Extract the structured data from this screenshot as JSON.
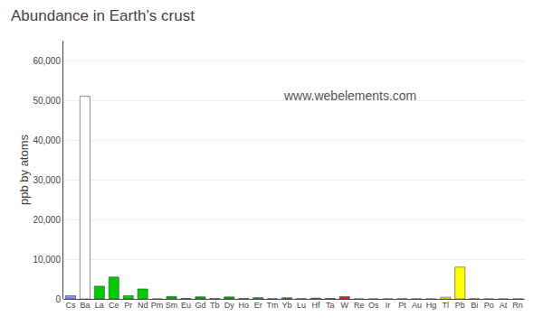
{
  "chart_data": {
    "type": "bar",
    "title": "Abundance in Earth’s crust",
    "ylabel": "ppb by atoms",
    "categories": [
      "Cs",
      "Ba",
      "La",
      "Ce",
      "Pr",
      "Nd",
      "Pm",
      "Sm",
      "Eu",
      "Gd",
      "Tb",
      "Dy",
      "Ho",
      "Er",
      "Tm",
      "Yb",
      "Lu",
      "Hf",
      "Ta",
      "W",
      "Re",
      "Os",
      "Ir",
      "Pt",
      "Au",
      "Hg",
      "Tl",
      "Pb",
      "Bi",
      "Po",
      "At",
      "Rn"
    ],
    "values": [
      800,
      51000,
      3200,
      5500,
      800,
      2500,
      0,
      600,
      120,
      520,
      85,
      500,
      100,
      300,
      45,
      280,
      45,
      190,
      110,
      550,
      2.6,
      1.5,
      2,
      37,
      15,
      8,
      420,
      8000,
      48,
      0.002,
      0.0001,
      0.0001
    ],
    "colors": [
      "#8888ff",
      "#ffffff",
      "#00cc00",
      "#00cc00",
      "#00cc00",
      "#00cc00",
      "#008800",
      "#00aa00",
      "#00aa00",
      "#00aa00",
      "#00aa00",
      "#00aa00",
      "#00aa00",
      "#00aa00",
      "#009900",
      "#009900",
      "#009900",
      "#dd2222",
      "#dd2222",
      "#dd2222",
      "#dd2222",
      "#dd2222",
      "#dd2222",
      "#ccccaa",
      "#dddd00",
      "#ffff00",
      "#ffff00",
      "#ffff00",
      "#ffff00",
      "#ffff00",
      "#ffff00",
      "#ffff00"
    ],
    "ylim": [
      0,
      65000
    ],
    "yticks": [
      0,
      {
        "value": 10000,
        "label": "10,000"
      },
      {
        "value": 20000,
        "label": "20,000"
      },
      {
        "value": 30000,
        "label": "30,000"
      },
      {
        "value": 40000,
        "label": "40,000"
      },
      {
        "value": 50000,
        "label": "50,000"
      },
      {
        "value": 60000,
        "label": "60,000"
      }
    ],
    "grid": true,
    "annotations": [
      "www.webelements.com"
    ]
  }
}
